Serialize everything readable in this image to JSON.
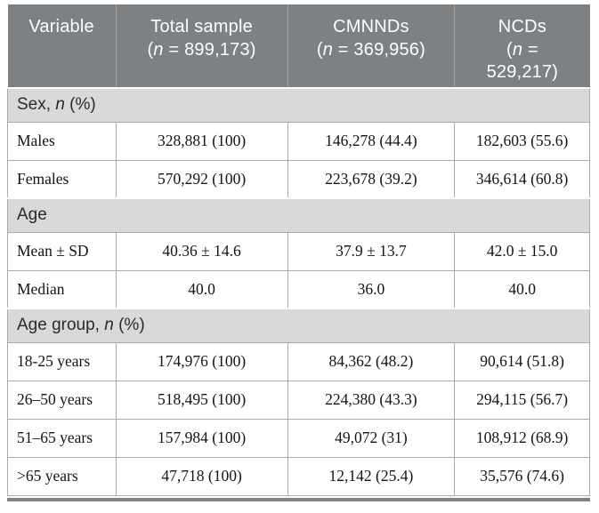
{
  "table": {
    "header": [
      "Variable",
      "Total sample\n(*n* = 899,173)",
      "CMNNDs\n(*n* = 369,956)",
      "NCDs\n(*n* =\n529,217)"
    ],
    "sections": [
      {
        "title": "Sex, *n* (%)",
        "rows": [
          {
            "label": "Males",
            "values": [
              "328,881 (100)",
              "146,278 (44.4)",
              "182,603 (55.6)"
            ]
          },
          {
            "label": "Females",
            "values": [
              "570,292 (100)",
              "223,678 (39.2)",
              "346,614 (60.8)"
            ]
          }
        ]
      },
      {
        "title": "Age",
        "rows": [
          {
            "label": "Mean ± SD",
            "values": [
              "40.36 ± 14.6",
              "37.9 ± 13.7",
              "42.0 ± 15.0"
            ]
          },
          {
            "label": "Median",
            "values": [
              "40.0",
              "36.0",
              "40.0"
            ]
          }
        ]
      },
      {
        "title": "Age group, *n* (%)",
        "rows": [
          {
            "label": "18-25 years",
            "values": [
              "174,976 (100)",
              "84,362 (48.2)",
              "90,614 (51.8)"
            ]
          },
          {
            "label": "26–50 years",
            "values": [
              "518,495 (100)",
              "224,380 (43.3)",
              "294,115 (56.7)"
            ]
          },
          {
            "label": "51–65 years",
            "values": [
              "157,984 (100)",
              "49,072 (31)",
              "108,912 (68.9)"
            ]
          },
          {
            "label": ">65 years",
            "values": [
              "47,718 (100)",
              "12,142 (25.4)",
              "35,576 (74.6)"
            ]
          }
        ]
      }
    ]
  },
  "colors": {
    "header_bg": "#7e8184",
    "header_text": "#fdfdfd",
    "section_bg": "#d8d9da",
    "section_text": "#2a2a2a",
    "body_text": "#141414",
    "border": "#a8aaad",
    "bottom_bar": "#808285",
    "page_bg": "#ffffff"
  }
}
